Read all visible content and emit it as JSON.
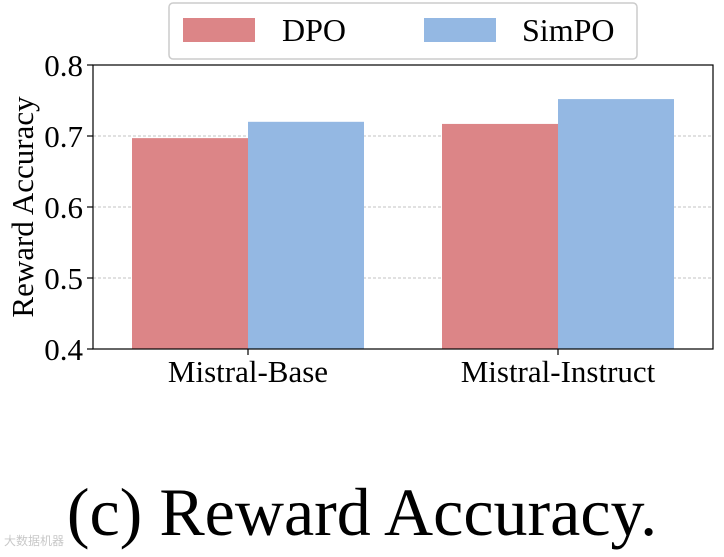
{
  "chart_data": {
    "type": "bar",
    "categories": [
      "Mistral-Base",
      "Mistral-Instruct"
    ],
    "series": [
      {
        "name": "DPO",
        "values": [
          0.697,
          0.717
        ],
        "color": "#dc8587"
      },
      {
        "name": "SimPO",
        "values": [
          0.72,
          0.752
        ],
        "color": "#94b8e3"
      }
    ],
    "xlabel": "",
    "ylabel": "Reward Accuracy",
    "ylim": [
      0.4,
      0.8
    ],
    "yticks": [
      0.4,
      0.5,
      0.6,
      0.7,
      0.8
    ],
    "ytick_labels": [
      "0.4",
      "0.5",
      "0.6",
      "0.7",
      "0.8"
    ],
    "grid": "horizontal dashed",
    "legend_position": "top-center"
  },
  "caption": "(c) Reward Accuracy.",
  "watermark": "大数据机器"
}
